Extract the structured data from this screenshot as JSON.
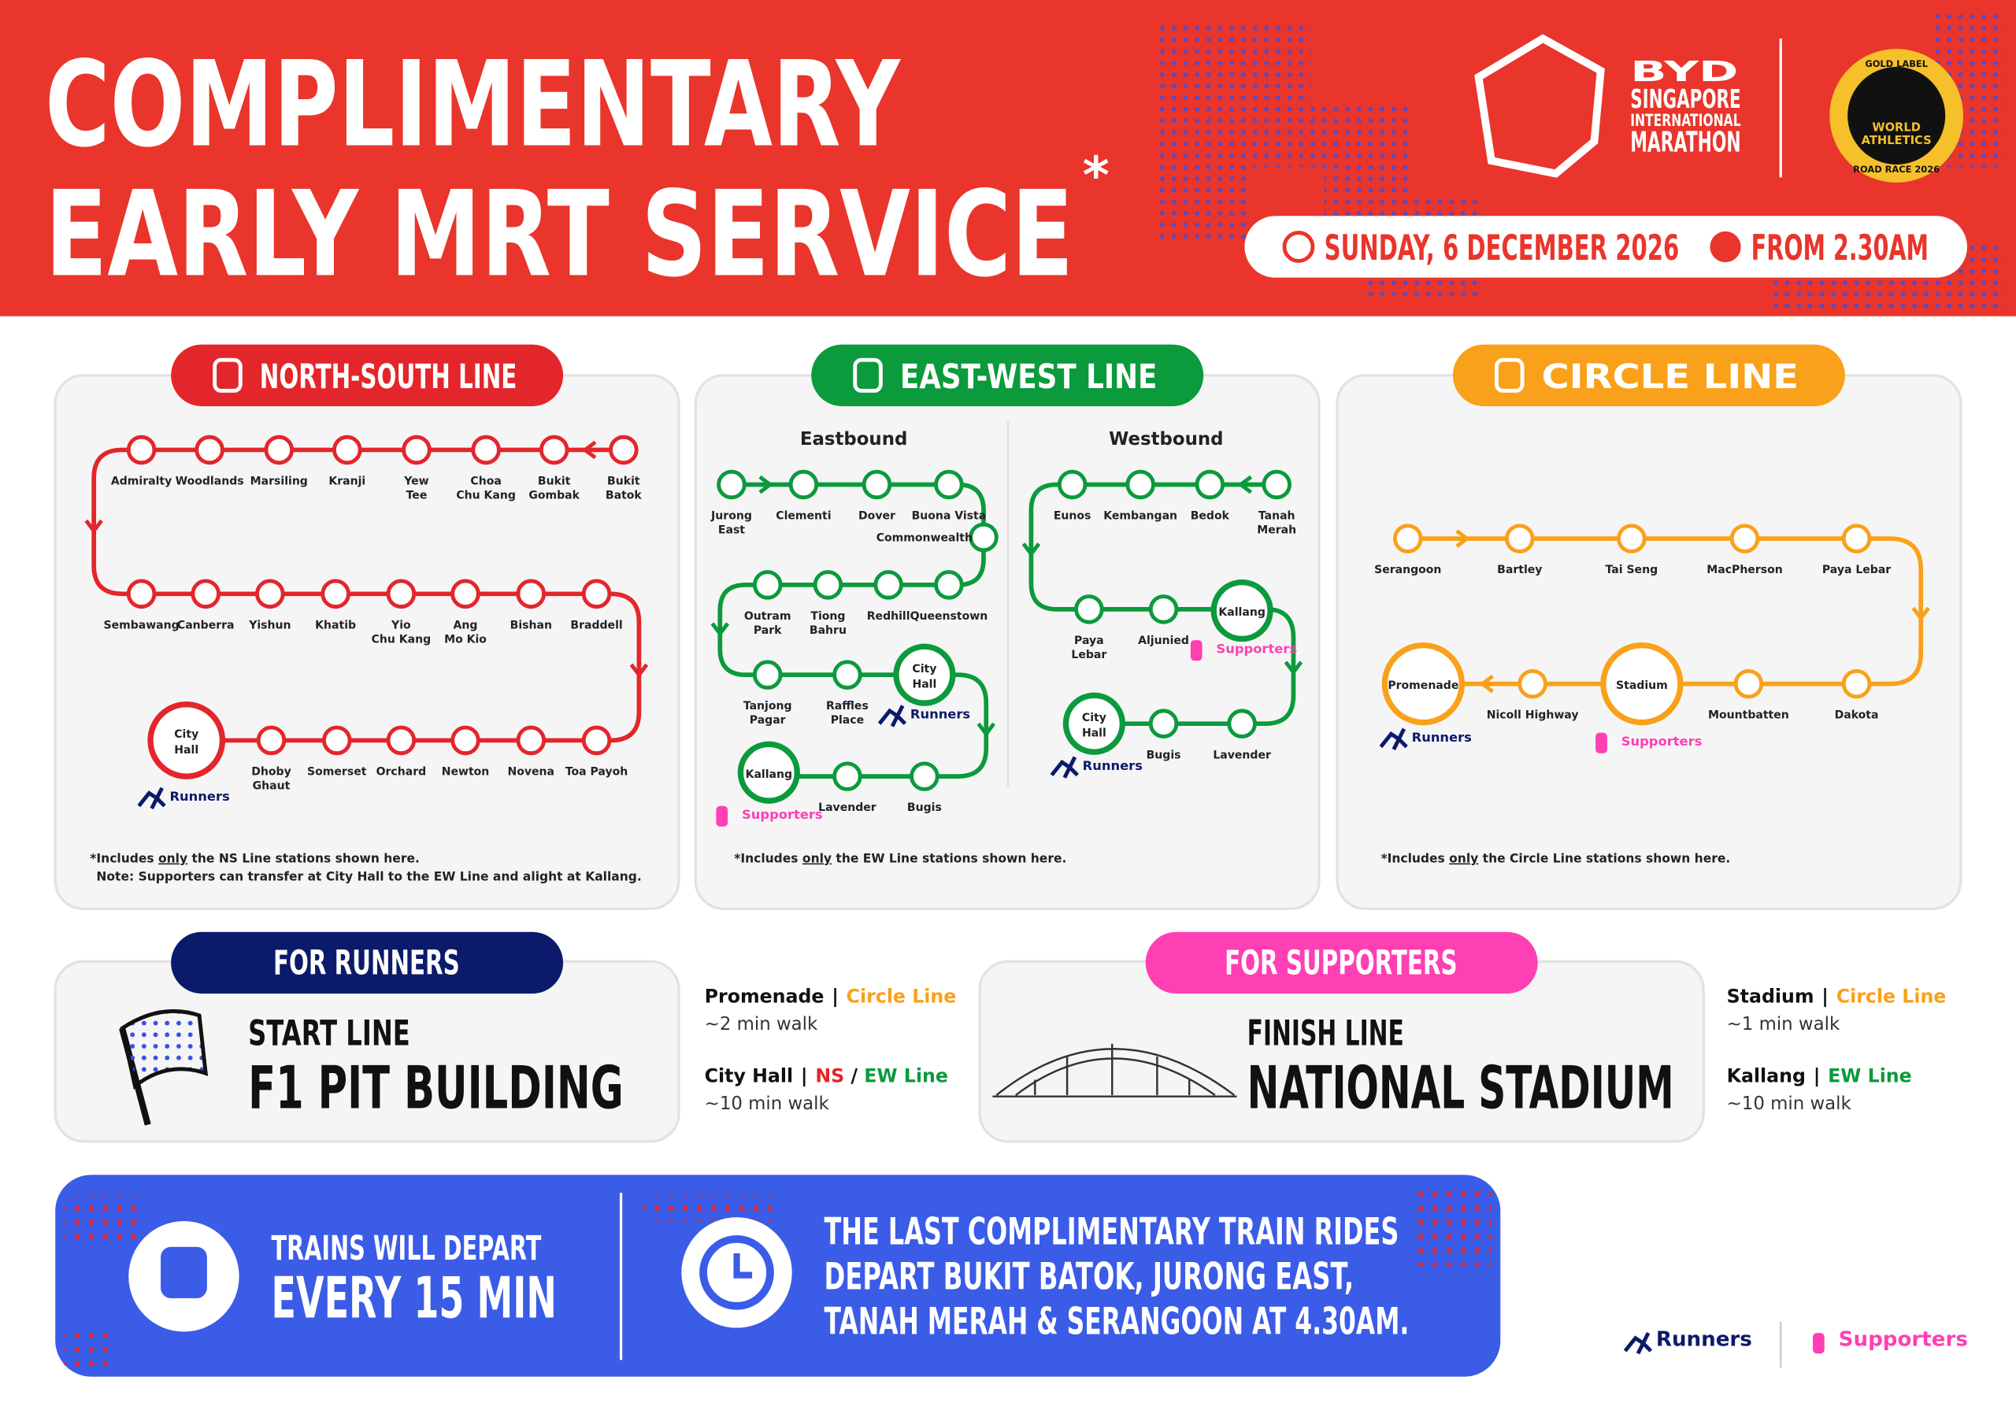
{
  "header": {
    "title_lines": [
      "COMPLIMENTARY",
      "EARLY MRT SERVICE"
    ],
    "asterisk": "*",
    "date": "SUNDAY, 6 DECEMBER 2026",
    "time": "FROM 2.30AM"
  },
  "logo": {
    "brand": "BYD",
    "lines": [
      "SINGAPORE",
      "INTERNATIONAL",
      "MARATHON"
    ],
    "badge": [
      "GOLD LABEL",
      "WORLD",
      "ATHLETICS",
      "ROAD RACE 2026"
    ]
  },
  "tags": {
    "runners": "Runners",
    "supporters": "Supporters"
  },
  "lines": [
    {
      "title": "NORTH-SOUTH LINE",
      "color": "#e3262b",
      "sections": [
        {
          "stations": [
            [
              "Bukit",
              "Batok"
            ],
            [
              "Bukit",
              "Gombak"
            ],
            [
              "Choa",
              "Chu Kang"
            ],
            [
              "Yew",
              "Tee"
            ],
            [
              "Kranji"
            ],
            [
              "Marsiling"
            ],
            [
              "Woodlands"
            ],
            [
              "Admiralty"
            ],
            [
              "Sembawang"
            ],
            [
              "Canberra"
            ],
            [
              "Yishun"
            ],
            [
              "Khatib"
            ],
            [
              "Yio",
              "Chu Kang"
            ],
            [
              "Ang",
              "Mo Kio"
            ],
            [
              "Bishan"
            ],
            [
              "Braddell"
            ],
            [
              "Toa Payoh"
            ],
            [
              "Novena"
            ],
            [
              "Newton"
            ],
            [
              "Orchard"
            ],
            [
              "Somerset"
            ],
            [
              "Dhoby",
              "Ghaut"
            ],
            [
              "City",
              "Hall"
            ]
          ]
        }
      ],
      "footnote": [
        "*Includes ",
        "only",
        " the NS Line stations shown here."
      ],
      "note": "Note: Supporters can transfer at City Hall to the EW Line and alight at Kallang."
    },
    {
      "title": "EAST-WEST LINE",
      "color": "#0b9a3c",
      "sections": [
        {
          "label": "Eastbound",
          "stations": [
            [
              "Jurong",
              "East"
            ],
            [
              "Clementi"
            ],
            [
              "Dover"
            ],
            [
              "Buona Vista"
            ],
            [
              "Commonwealth"
            ],
            [
              "Queenstown"
            ],
            [
              "Redhill"
            ],
            [
              "Tiong",
              "Bahru"
            ],
            [
              "Outram",
              "Park"
            ],
            [
              "Tanjong",
              "Pagar"
            ],
            [
              "Raffles",
              "Place"
            ],
            [
              "City",
              "Hall"
            ],
            [
              "Bugis"
            ],
            [
              "Lavender"
            ],
            [
              "Kallang"
            ]
          ]
        },
        {
          "label": "Westbound",
          "stations": [
            [
              "Tanah",
              "Merah"
            ],
            [
              "Bedok"
            ],
            [
              "Kembangan"
            ],
            [
              "Eunos"
            ],
            [
              "Paya",
              "Lebar"
            ],
            [
              "Aljunied"
            ],
            [
              "Kallang"
            ],
            [
              "Lavender"
            ],
            [
              "Bugis"
            ],
            [
              "City",
              "Hall"
            ]
          ]
        }
      ],
      "footnote": [
        "*Includes ",
        "only",
        " the EW Line stations shown here."
      ]
    },
    {
      "title": "CIRCLE LINE",
      "color": "#f9a11b",
      "sections": [
        {
          "stations": [
            [
              "Serangoon"
            ],
            [
              "Bartley"
            ],
            [
              "Tai Seng"
            ],
            [
              "MacPherson"
            ],
            [
              "Paya Lebar"
            ],
            [
              "Dakota"
            ],
            [
              "Mountbatten"
            ],
            [
              "Stadium"
            ],
            [
              "Nicoll Highway"
            ],
            [
              "Promenade"
            ]
          ]
        }
      ],
      "footnote": [
        "*Includes ",
        "only",
        " the Circle Line stations shown here."
      ]
    }
  ],
  "runners": {
    "tab": "FOR RUNNERS",
    "kicker": "START LINE",
    "venue": "F1 PIT BUILDING",
    "routes": [
      {
        "station": "Promenade",
        "sep": "|",
        "line": [
          {
            "text": "Circle Line",
            "color": "#f9a11b"
          }
        ],
        "walk": "~2 min walk"
      },
      {
        "station": "City Hall",
        "sep": "|",
        "line": [
          {
            "text": "NS",
            "color": "#e3262b"
          },
          {
            "text": " / ",
            "color": "#111111"
          },
          {
            "text": "EW Line",
            "color": "#0b9a3c"
          }
        ],
        "walk": "~10 min walk"
      }
    ]
  },
  "supporters": {
    "tab": "FOR SUPPORTERS",
    "kicker": "FINISH LINE",
    "venue": "NATIONAL STADIUM",
    "routes": [
      {
        "station": "Stadium",
        "sep": "|",
        "line": [
          {
            "text": "Circle Line",
            "color": "#f9a11b"
          }
        ],
        "walk": "~1 min walk"
      },
      {
        "station": "Kallang",
        "sep": "|",
        "line": [
          {
            "text": "EW Line",
            "color": "#0b9a3c"
          }
        ],
        "walk": "~10 min walk"
      }
    ]
  },
  "banner": {
    "left": [
      "TRAINS WILL DEPART",
      "EVERY 15 MIN"
    ],
    "right": [
      "THE LAST COMPLIMENTARY TRAIN RIDES",
      "DEPART BUKIT BATOK, JURONG EAST,",
      "TANAH MERAH & SERANGOON AT 4.30AM."
    ]
  }
}
